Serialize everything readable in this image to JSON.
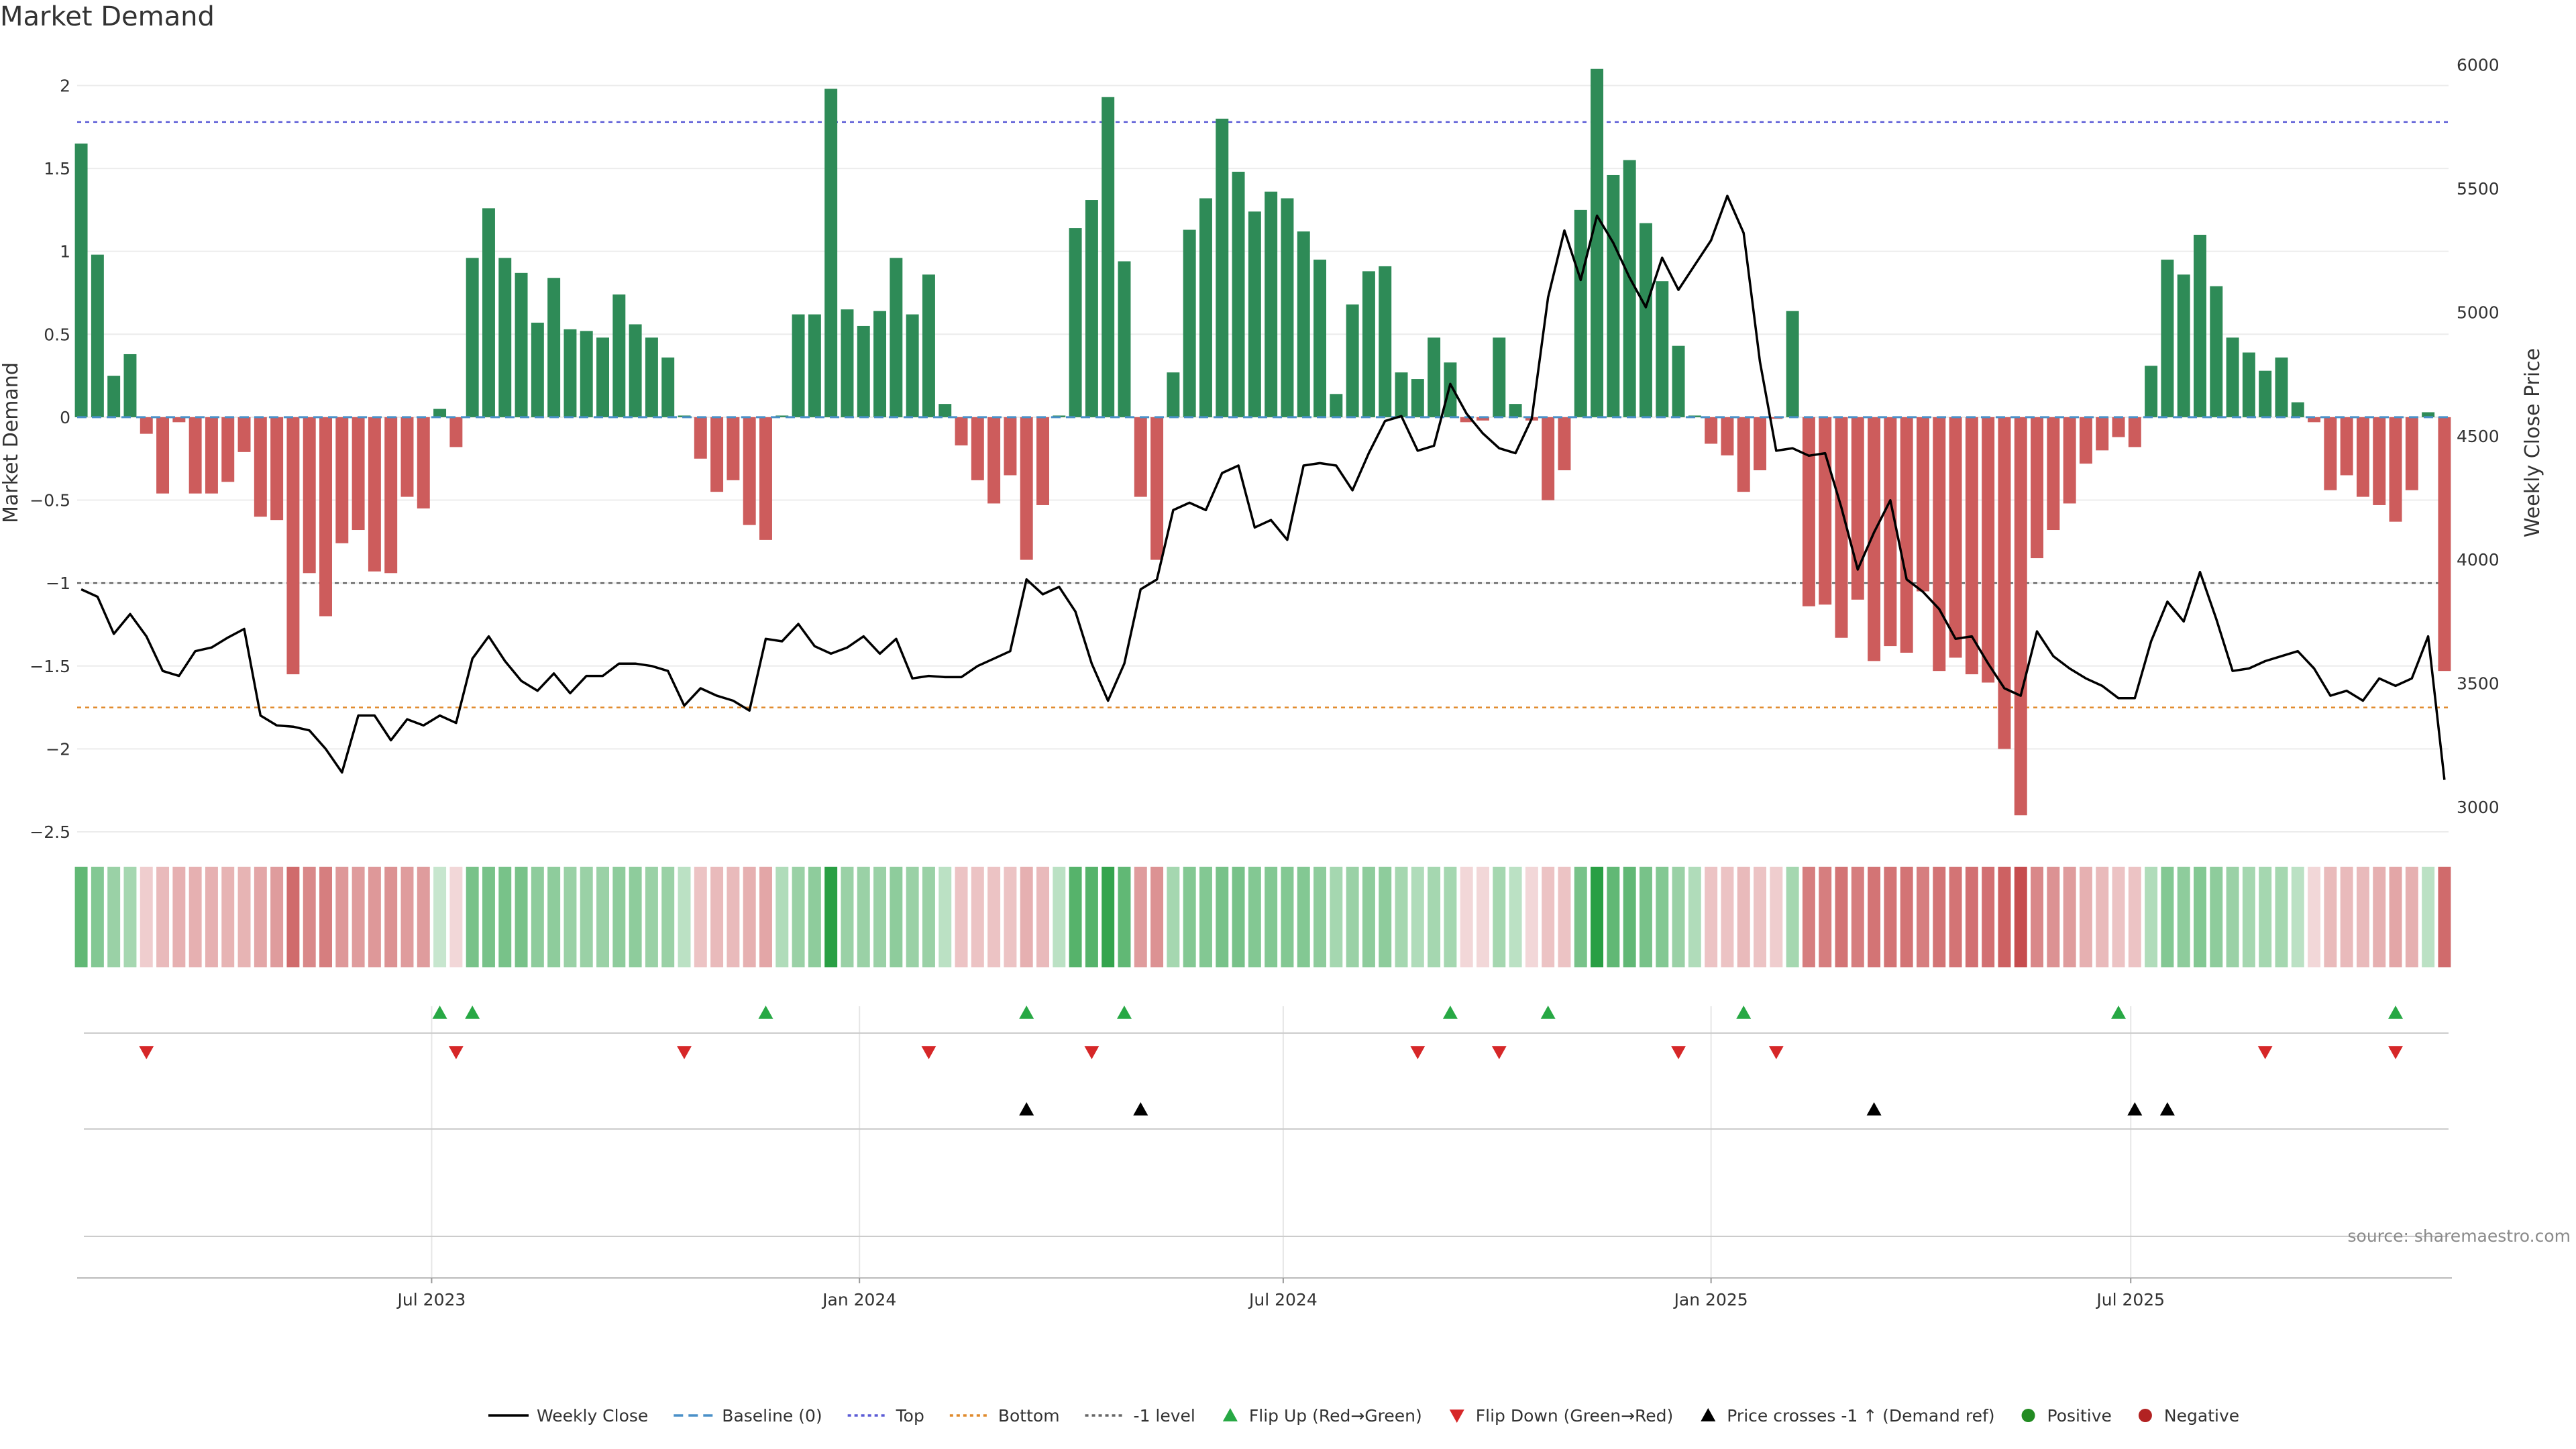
{
  "chart_data": {
    "type": "bar",
    "title": "Market Demand",
    "ylabel": "Market Demand",
    "y2label": "Weekly Close Price",
    "ylim": [
      -2.5,
      2.2
    ],
    "y2lim": [
      2900,
      6050
    ],
    "y_ticks": [
      2,
      1.5,
      1,
      0.5,
      0,
      -0.5,
      -1,
      -1.5,
      -2,
      -2.5
    ],
    "y_tick_labels": [
      "2",
      "1.5",
      "1",
      "0.5",
      "0",
      "−0.5",
      "−1",
      "−1.5",
      "−2",
      "−2.5"
    ],
    "y2_ticks": [
      6000,
      5500,
      5000,
      4500,
      4000,
      3500,
      3000
    ],
    "y2_tick_labels": [
      "6000",
      "5500",
      "5000",
      "4500",
      "4000",
      "3500",
      "3000"
    ],
    "reference_lines": [
      {
        "name": "Top",
        "value": 1.78,
        "color": "#5b5bd6"
      },
      {
        "name": "Bottom",
        "value": -1.75,
        "color": "#e08a2c"
      },
      {
        "name": "-1 level",
        "value": -1.0,
        "color": "#666666"
      },
      {
        "name": "Baseline (0)",
        "value": 0,
        "color": "#4a90c8"
      }
    ],
    "x_tick_labels": [
      "Jul 2023",
      "Jan 2024",
      "Jul 2024",
      "Jan 2025",
      "Jul 2025"
    ],
    "x_tick_weeks": [
      21.5,
      47.75,
      73.75,
      100,
      125.75
    ],
    "demand": [
      1.65,
      0.98,
      0.25,
      0.38,
      -0.1,
      -0.46,
      -0.03,
      -0.46,
      -0.46,
      -0.39,
      -0.21,
      -0.6,
      -0.62,
      -1.55,
      -0.94,
      -1.2,
      -0.76,
      -0.68,
      -0.93,
      -0.94,
      -0.48,
      -0.55,
      0.05,
      -0.18,
      0.96,
      1.26,
      0.96,
      0.87,
      0.57,
      0.84,
      0.53,
      0.52,
      0.48,
      0.74,
      0.56,
      0.48,
      0.36,
      0.01,
      -0.25,
      -0.45,
      -0.38,
      -0.65,
      -0.74,
      0.01,
      0.62,
      0.62,
      1.98,
      0.65,
      0.55,
      0.64,
      0.96,
      0.62,
      0.86,
      0.08,
      -0.17,
      -0.38,
      -0.52,
      -0.35,
      -0.86,
      -0.53,
      0.01,
      1.14,
      1.31,
      1.93,
      0.94,
      -0.48,
      -0.86,
      0.27,
      1.13,
      1.32,
      1.8,
      1.48,
      1.24,
      1.36,
      1.32,
      1.12,
      0.95,
      0.14,
      0.68,
      0.88,
      0.91,
      0.27,
      0.23,
      0.48,
      0.33,
      -0.03,
      -0.02,
      0.48,
      0.08,
      -0.02,
      -0.5,
      -0.32,
      1.25,
      2.1,
      1.46,
      1.55,
      1.17,
      0.82,
      0.43,
      0.01,
      -0.16,
      -0.23,
      -0.45,
      -0.32,
      -0.01,
      0.64,
      -1.14,
      -1.13,
      -1.33,
      -1.1,
      -1.47,
      -1.38,
      -1.42,
      -1.05,
      -1.53,
      -1.45,
      -1.55,
      -1.6,
      -2.0,
      -2.4,
      -0.85,
      -0.68,
      -0.52,
      -0.28,
      -0.2,
      -0.12,
      -0.18,
      0.31,
      0.95,
      0.86,
      1.1,
      0.79,
      0.48,
      0.39,
      0.28,
      0.36,
      0.09,
      -0.03,
      -0.44,
      -0.35,
      -0.48,
      -0.53,
      -0.63,
      -0.44,
      0.03,
      -1.53
    ],
    "weekly_close": [
      3880,
      3850,
      3700,
      3780,
      3690,
      3550,
      3530,
      3630,
      3645,
      3685,
      3720,
      3370,
      3330,
      3325,
      3310,
      3235,
      3140,
      3370,
      3370,
      3270,
      3355,
      3330,
      3370,
      3340,
      3600,
      3690,
      3590,
      3510,
      3470,
      3540,
      3460,
      3530,
      3530,
      3580,
      3580,
      3570,
      3550,
      3410,
      3480,
      3450,
      3430,
      3390,
      3680,
      3670,
      3740,
      3650,
      3620,
      3645,
      3690,
      3620,
      3680,
      3520,
      3530,
      3525,
      3525,
      3570,
      3600,
      3630,
      3920,
      3860,
      3890,
      3790,
      3580,
      3430,
      3580,
      3880,
      3920,
      4200,
      4230,
      4200,
      4350,
      4380,
      4130,
      4160,
      4080,
      4380,
      4390,
      4380,
      4280,
      4430,
      4560,
      4580,
      4440,
      4460,
      4710,
      4590,
      4510,
      4450,
      4430,
      4570,
      5060,
      5330,
      5130,
      5390,
      5280,
      5140,
      5020,
      5220,
      5090,
      5190,
      5290,
      5470,
      5320,
      4800,
      4440,
      4450,
      4420,
      4430,
      4210,
      3960,
      4110,
      4240,
      3920,
      3870,
      3800,
      3680,
      3690,
      3580,
      3480,
      3450,
      3710,
      3610,
      3560,
      3520,
      3490,
      3440,
      3440,
      3670,
      3830,
      3750,
      3950,
      3760,
      3550,
      3560,
      3590,
      3610,
      3630,
      3560,
      3450,
      3470,
      3430,
      3520,
      3490,
      3520,
      3690,
      3110
    ],
    "heat_alpha": [
      0.7,
      0.55,
      0.45,
      0.4,
      0.25,
      0.35,
      0.4,
      0.4,
      0.4,
      0.38,
      0.38,
      0.45,
      0.5,
      0.75,
      0.6,
      0.65,
      0.52,
      0.5,
      0.52,
      0.55,
      0.5,
      0.5,
      0.25,
      0.2,
      0.6,
      0.6,
      0.6,
      0.6,
      0.5,
      0.5,
      0.45,
      0.45,
      0.45,
      0.5,
      0.5,
      0.45,
      0.45,
      0.3,
      0.3,
      0.35,
      0.35,
      0.4,
      0.45,
      0.35,
      0.45,
      0.5,
      0.95,
      0.45,
      0.45,
      0.45,
      0.5,
      0.45,
      0.45,
      0.3,
      0.3,
      0.3,
      0.3,
      0.3,
      0.4,
      0.35,
      0.3,
      0.75,
      0.75,
      0.9,
      0.7,
      0.5,
      0.55,
      0.4,
      0.55,
      0.55,
      0.6,
      0.6,
      0.55,
      0.55,
      0.55,
      0.55,
      0.5,
      0.4,
      0.45,
      0.5,
      0.5,
      0.4,
      0.35,
      0.4,
      0.4,
      0.2,
      0.2,
      0.4,
      0.3,
      0.2,
      0.3,
      0.3,
      0.6,
      0.95,
      0.7,
      0.7,
      0.6,
      0.55,
      0.45,
      0.35,
      0.3,
      0.3,
      0.35,
      0.3,
      0.25,
      0.4,
      0.65,
      0.65,
      0.7,
      0.65,
      0.7,
      0.7,
      0.7,
      0.65,
      0.7,
      0.7,
      0.72,
      0.72,
      0.8,
      0.9,
      0.6,
      0.55,
      0.5,
      0.4,
      0.35,
      0.3,
      0.3,
      0.35,
      0.55,
      0.5,
      0.55,
      0.5,
      0.45,
      0.4,
      0.4,
      0.4,
      0.3,
      0.2,
      0.35,
      0.35,
      0.35,
      0.4,
      0.45,
      0.4,
      0.3,
      0.75
    ],
    "flip_up_weeks": [
      22,
      24,
      42,
      58,
      64,
      84,
      90,
      102,
      125,
      142
    ],
    "flip_down_weeks": [
      4,
      23,
      37,
      52,
      62,
      82,
      87,
      98,
      104,
      134,
      142
    ],
    "price_cross_weeks": [
      58,
      65,
      110,
      126,
      128
    ],
    "legend": [
      "Weekly Close",
      "Baseline (0)",
      "Top",
      "Bottom",
      "-1 level",
      "Flip Up (Red→Green)",
      "Flip Down (Green→Red)",
      "Price crosses -1 ↑ (Demand ref)",
      "Positive",
      "Negative"
    ],
    "colors": {
      "positive": "#2e8b57",
      "negative": "#cd5c5c",
      "heat_positive": "#1e9a3a",
      "heat_negative": "#c0393b",
      "flip_up": "#27a844",
      "flip_down": "#d62728",
      "price_cross": "#000000",
      "line": "#000000",
      "legend_positive": "#228b22",
      "legend_negative": "#b22222"
    }
  },
  "source": "source: sharemaestro.com"
}
